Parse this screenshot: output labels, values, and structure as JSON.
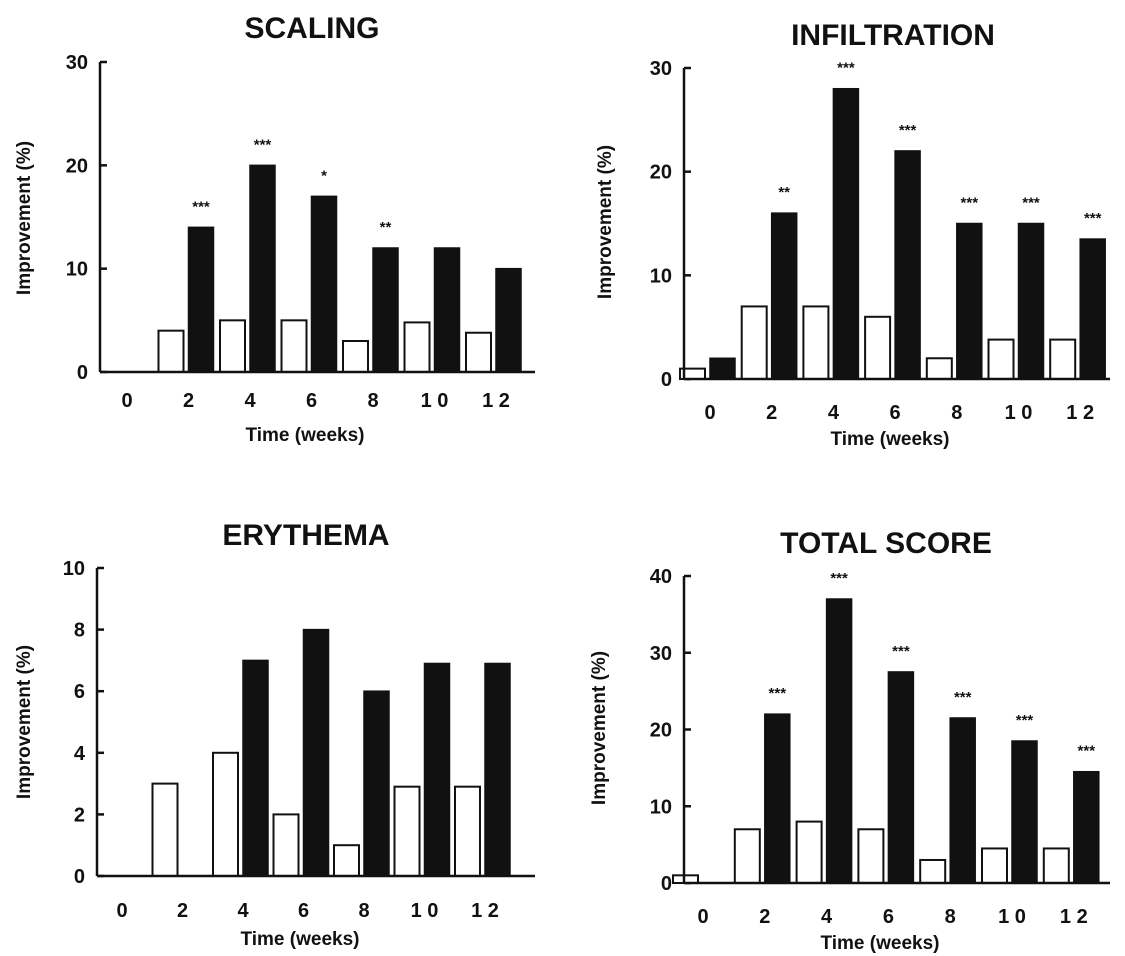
{
  "figure": {
    "legend": [
      {
        "name": "",
        "fill": "#ffffff"
      },
      {
        "name": "",
        "fill": "#111111"
      }
    ]
  },
  "chart_data": [
    {
      "type": "bar",
      "title": "SCALING",
      "xlabel": "Time (weeks)",
      "ylabel": "Improvement  (%)",
      "categories": [
        "0",
        "2",
        "4",
        "6",
        "8",
        "1 0",
        "1 2"
      ],
      "ylim": [
        0,
        30
      ],
      "yticks": [
        "0",
        "10",
        "20",
        "30"
      ],
      "series": [
        {
          "values": [
            0,
            4,
            5,
            5,
            3,
            4.8,
            3.8
          ],
          "fill": "#ffffff"
        },
        {
          "values": [
            0,
            14,
            20,
            17,
            12,
            12,
            10
          ],
          "fill": "#111111"
        }
      ],
      "annotations": [
        "",
        "***",
        "***",
        "*",
        "**",
        "",
        ""
      ]
    },
    {
      "type": "bar",
      "title": "INFILTRATION",
      "xlabel": "Time (weeks)",
      "ylabel": "Improvement  (%)",
      "categories": [
        "0",
        "2",
        "4",
        "6",
        "8",
        "1 0",
        "1 2"
      ],
      "ylim": [
        0,
        30
      ],
      "yticks": [
        "0",
        "10",
        "20",
        "30"
      ],
      "series": [
        {
          "values": [
            1,
            7,
            7,
            6,
            2,
            3.8,
            3.8
          ],
          "fill": "#ffffff"
        },
        {
          "values": [
            2,
            16,
            28,
            22,
            15,
            15,
            13.5
          ],
          "fill": "#111111"
        }
      ],
      "annotations": [
        "",
        "**",
        "***",
        "***",
        "***",
        "***",
        "***"
      ]
    },
    {
      "type": "bar",
      "title": "ERYTHEMA",
      "xlabel": "Time (weeks)",
      "ylabel": "Improvement  (%)",
      "categories": [
        "0",
        "2",
        "4",
        "6",
        "8",
        "1 0",
        "1 2"
      ],
      "ylim": [
        0,
        10
      ],
      "yticks": [
        "0",
        "2",
        "4",
        "6",
        "8",
        "10"
      ],
      "series": [
        {
          "values": [
            0,
            3,
            4,
            2,
            1,
            2.9,
            2.9
          ],
          "fill": "#ffffff"
        },
        {
          "values": [
            0,
            0,
            7,
            8,
            6,
            6.9,
            6.9
          ],
          "fill": "#111111"
        }
      ],
      "annotations": [
        "",
        "",
        "",
        "",
        "",
        "",
        ""
      ]
    },
    {
      "type": "bar",
      "title": "TOTAL SCORE",
      "xlabel": "Time (weeks)",
      "ylabel": "Improvement  (%)",
      "categories": [
        "0",
        "2",
        "4",
        "6",
        "8",
        "1 0",
        "1 2"
      ],
      "ylim": [
        0,
        40
      ],
      "yticks": [
        "0",
        "10",
        "20",
        "30",
        "40"
      ],
      "series": [
        {
          "values": [
            1,
            7,
            8,
            7,
            3,
            4.5,
            4.5
          ],
          "fill": "#ffffff"
        },
        {
          "values": [
            0,
            22,
            37,
            27.5,
            21.5,
            18.5,
            14.5
          ],
          "fill": "#111111"
        }
      ],
      "annotations": [
        "",
        "***",
        "***",
        "***",
        "***",
        "***",
        "***"
      ]
    }
  ]
}
